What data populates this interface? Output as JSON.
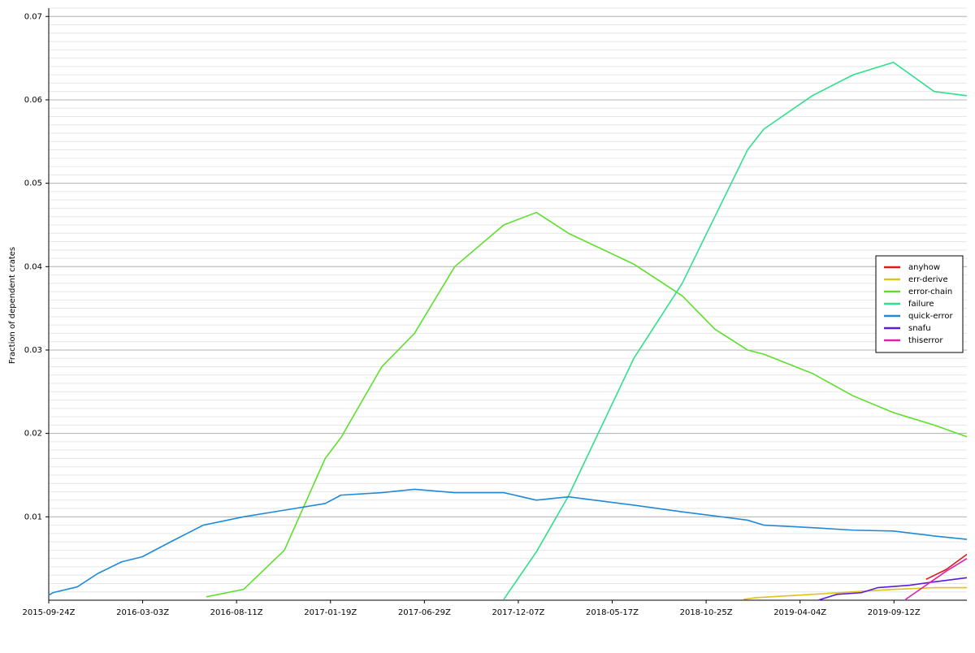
{
  "chart_data": {
    "type": "line",
    "y_label": "Fraction of dependent crates",
    "xlim": [
      "2015-09-24",
      "2020-01-15"
    ],
    "xticks": [
      {
        "value": "2015-09-24",
        "label": "2015-09-24Z"
      },
      {
        "value": "2016-03-03",
        "label": "2016-03-03Z"
      },
      {
        "value": "2016-08-11",
        "label": "2016-08-11Z"
      },
      {
        "value": "2017-01-19",
        "label": "2017-01-19Z"
      },
      {
        "value": "2017-06-29",
        "label": "2017-06-29Z"
      },
      {
        "value": "2017-12-07",
        "label": "2017-12-07Z"
      },
      {
        "value": "2018-05-17",
        "label": "2018-05-17Z"
      },
      {
        "value": "2018-10-25",
        "label": "2018-10-25Z"
      },
      {
        "value": "2019-04-04",
        "label": "2019-04-04Z"
      },
      {
        "value": "2019-09-12",
        "label": "2019-09-12Z"
      }
    ],
    "ylim": [
      0,
      0.071
    ],
    "yticks": [
      0.01,
      0.02,
      0.03,
      0.04,
      0.05,
      0.06,
      0.07
    ],
    "grid": true,
    "minor_grid": true,
    "legend": "center right",
    "series": [
      {
        "name": "anyhow",
        "color": "#d81b1b",
        "x": [
          "2019-11-06",
          "2019-12-11",
          "2020-01-15"
        ],
        "values": [
          0.0025,
          0.0037,
          0.0055
        ]
      },
      {
        "name": "err-derive",
        "color": "#e0c21f",
        "x": [
          "2018-12-28",
          "2019-01-18",
          "2019-04-25",
          "2019-07-04",
          "2019-09-11",
          "2019-11-20",
          "2020-01-15"
        ],
        "values": [
          0.0001,
          0.0003,
          0.0007,
          0.001,
          0.0013,
          0.0015,
          0.0015
        ]
      },
      {
        "name": "error-chain",
        "color": "#5de02a",
        "x": [
          "2016-06-20",
          "2016-08-23",
          "2016-11-01",
          "2016-12-25",
          "2017-01-10",
          "2017-02-06",
          "2017-04-17",
          "2017-06-12",
          "2017-08-20",
          "2017-11-12",
          "2018-01-07",
          "2018-03-03",
          "2018-06-23",
          "2018-09-14",
          "2018-11-09",
          "2019-01-04",
          "2019-02-01",
          "2019-04-25",
          "2019-07-04",
          "2019-09-11",
          "2019-11-20",
          "2020-01-15"
        ],
        "values": [
          0.0004,
          0.0013,
          0.006,
          0.0145,
          0.017,
          0.0195,
          0.028,
          0.032,
          0.04,
          0.045,
          0.0465,
          0.044,
          0.0403,
          0.0365,
          0.0325,
          0.03,
          0.0295,
          0.0272,
          0.0245,
          0.0225,
          0.021,
          0.0196
        ]
      },
      {
        "name": "failure",
        "color": "#2ee08a",
        "x": [
          "2017-11-12",
          "2018-01-07",
          "2018-03-03",
          "2018-06-23",
          "2018-09-14",
          "2018-11-09",
          "2019-01-04",
          "2019-02-01",
          "2019-04-25",
          "2019-07-04",
          "2019-09-11",
          "2019-11-20",
          "2020-01-15"
        ],
        "values": [
          0.0001,
          0.0058,
          0.0125,
          0.029,
          0.038,
          0.046,
          0.054,
          0.0565,
          0.0605,
          0.063,
          0.0645,
          0.061,
          0.0605
        ]
      },
      {
        "name": "quick-error",
        "color": "#1f8ad8",
        "x": [
          "2015-09-24",
          "2015-10-01",
          "2015-11-12",
          "2015-12-17",
          "2016-01-27",
          "2016-03-02",
          "2016-04-20",
          "2016-06-15",
          "2016-08-23",
          "2016-11-01",
          "2017-01-10",
          "2017-02-06",
          "2017-04-17",
          "2017-06-12",
          "2017-08-20",
          "2017-11-12",
          "2018-01-07",
          "2018-03-03",
          "2018-06-23",
          "2018-09-14",
          "2018-11-09",
          "2019-01-04",
          "2019-02-01",
          "2019-04-25",
          "2019-07-04",
          "2019-09-11",
          "2019-11-20",
          "2020-01-15"
        ],
        "values": [
          0.0006,
          0.0009,
          0.0016,
          0.0032,
          0.0046,
          0.0052,
          0.007,
          0.009,
          0.01,
          0.0108,
          0.0116,
          0.0126,
          0.0129,
          0.0133,
          0.0129,
          0.0129,
          0.012,
          0.0124,
          0.0114,
          0.0106,
          0.0101,
          0.0096,
          0.009,
          0.0087,
          0.0084,
          0.0083,
          0.0077,
          0.0073
        ]
      },
      {
        "name": "snafu",
        "color": "#5a1cd8",
        "x": [
          "2019-05-05",
          "2019-06-06",
          "2019-07-18",
          "2019-08-15",
          "2019-10-09",
          "2019-11-20",
          "2020-01-15"
        ],
        "values": [
          0.0,
          0.0007,
          0.0009,
          0.0015,
          0.0018,
          0.0022,
          0.0027
        ]
      },
      {
        "name": "thiserror",
        "color": "#e01fb0",
        "x": [
          "2019-10-02",
          "2019-11-06",
          "2019-12-11",
          "2020-01-15"
        ],
        "values": [
          0.0001,
          0.0018,
          0.0035,
          0.005
        ]
      }
    ]
  }
}
